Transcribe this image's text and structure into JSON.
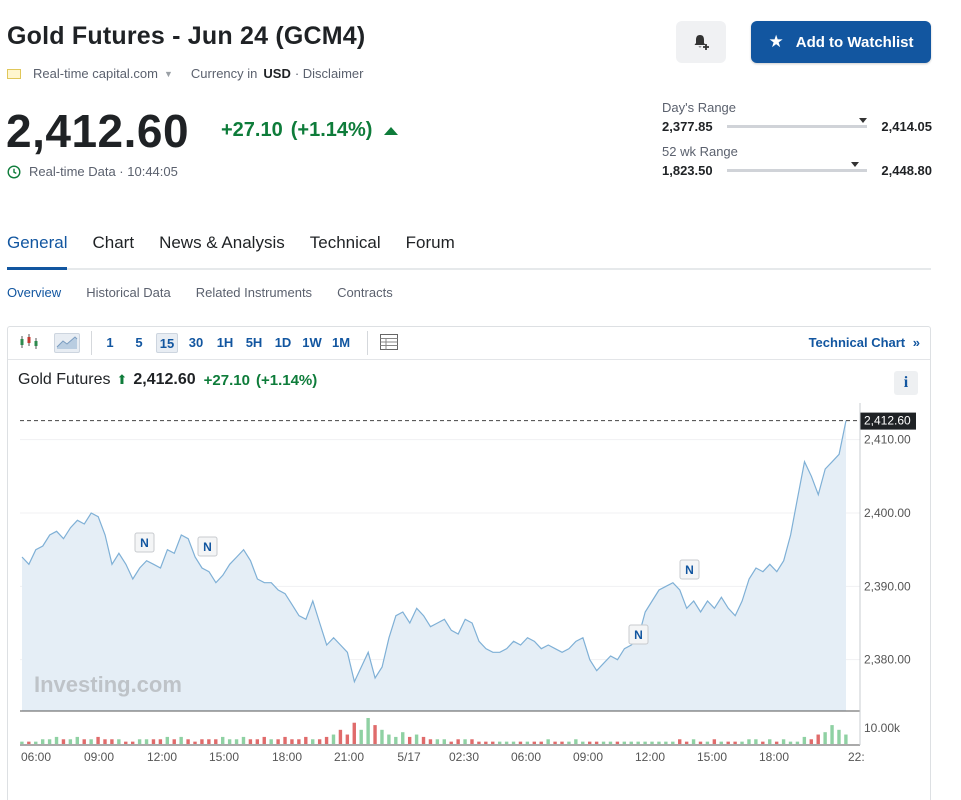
{
  "header": {
    "title": "Gold Futures - Jun 24 (GCM4)",
    "source": "Real-time capital.com",
    "currency_label": "Currency in",
    "currency": "USD",
    "disclaimer": "· Disclaimer",
    "watchlist_label": "Add to Watchlist"
  },
  "quote": {
    "price": "2,412.60",
    "change": "+27.10",
    "change_pct": "(+1.14%)",
    "realtime_label": "Real-time Data · 10:44:05"
  },
  "ranges": {
    "day_label": "Day's Range",
    "day_low": "2,377.85",
    "day_high": "2,414.05",
    "wk_label": "52 wk Range",
    "wk_low": "1,823.50",
    "wk_high": "2,448.80"
  },
  "tabs": [
    {
      "label": "General",
      "active": true
    },
    {
      "label": "Chart"
    },
    {
      "label": "News & Analysis"
    },
    {
      "label": "Technical"
    },
    {
      "label": "Forum"
    }
  ],
  "subtabs": [
    {
      "label": "Overview",
      "active": true
    },
    {
      "label": "Historical Data"
    },
    {
      "label": "Related Instruments"
    },
    {
      "label": "Contracts"
    }
  ],
  "toolbar": {
    "intervals": [
      "1",
      "5",
      "15",
      "30",
      "1H",
      "5H",
      "1D",
      "1W",
      "1M"
    ],
    "selected": "15",
    "technical_chart": "Technical Chart"
  },
  "chart_head": {
    "name": "Gold Futures",
    "price": "2,412.60",
    "change": "+27.10",
    "change_pct": "(+1.14%)"
  },
  "colors": {
    "accent": "#1256a0",
    "up": "#0e7c3a",
    "line": "#7fb0d6",
    "area": "#e5eef6"
  },
  "chart_data": {
    "type": "area",
    "title": "",
    "watermark": "Investing.com",
    "y_ticks": [
      "2,380.00",
      "2,390.00",
      "2,400.00",
      "2,410.00"
    ],
    "ylim": [
      2373,
      2415
    ],
    "last_price_label": "2,412.60",
    "volume_tick": "10.00k",
    "x_ticks": [
      "06:00",
      "09:00",
      "12:00",
      "15:00",
      "18:00",
      "21:00",
      "5/17",
      "02:30",
      "06:00",
      "09:00",
      "12:00",
      "15:00",
      "18:00",
      "22:"
    ],
    "values": [
      2394.0,
      2393.0,
      2395.0,
      2395.5,
      2397.0,
      2397.5,
      2396.5,
      2398.0,
      2399.0,
      2398.5,
      2400.0,
      2399.5,
      2397.0,
      2393.0,
      2394.5,
      2393.0,
      2391.0,
      2392.5,
      2393.5,
      2393.0,
      2392.5,
      2395.0,
      2394.5,
      2397.0,
      2396.5,
      2394.0,
      2392.5,
      2392.0,
      2390.5,
      2391.5,
      2393.0,
      2394.0,
      2395.0,
      2393.5,
      2391.0,
      2390.5,
      2390.5,
      2389.5,
      2389.0,
      2387.5,
      2386.0,
      2385.5,
      2388.0,
      2385.0,
      2382.0,
      2383.0,
      2382.0,
      2381.0,
      2377.0,
      2379.0,
      2381.0,
      2377.5,
      2379.0,
      2383.0,
      2386.0,
      2386.5,
      2385.0,
      2387.0,
      2386.0,
      2384.5,
      2385.0,
      2385.5,
      2384.0,
      2383.5,
      2385.5,
      2385.0,
      2382.5,
      2381.5,
      2381.0,
      2381.0,
      2381.5,
      2382.5,
      2382.0,
      2383.0,
      2382.5,
      2381.5,
      2382.0,
      2381.5,
      2381.0,
      2381.5,
      2382.5,
      2383.0,
      2380.0,
      2378.5,
      2379.5,
      2380.5,
      2380.0,
      2381.5,
      2382.0,
      2383.0,
      2386.5,
      2388.0,
      2389.5,
      2390.0,
      2390.5,
      2389.5,
      2387.0,
      2388.0,
      2386.5,
      2388.0,
      2387.0,
      2388.5,
      2387.0,
      2386.0,
      2388.0,
      2391.0,
      2392.5,
      2392.0,
      2393.0,
      2392.0,
      2393.5,
      2397.0,
      2402.0,
      2407.0,
      2405.0,
      2402.5,
      2406.0,
      2407.0,
      2408.0,
      2412.6
    ],
    "volume": [
      1,
      1,
      1,
      2,
      2,
      3,
      2,
      2,
      3,
      2,
      2,
      3,
      2,
      2,
      2,
      1,
      1,
      2,
      2,
      2,
      2,
      3,
      2,
      3,
      2,
      1,
      2,
      2,
      2,
      3,
      2,
      2,
      3,
      2,
      2,
      3,
      2,
      2,
      3,
      2,
      2,
      3,
      2,
      2,
      3,
      4,
      6,
      4,
      9,
      6,
      11,
      8,
      6,
      4,
      3,
      5,
      3,
      4,
      3,
      2,
      2,
      2,
      1,
      2,
      2,
      2,
      1,
      1,
      1,
      1,
      1,
      1,
      1,
      1,
      1,
      1,
      2,
      1,
      1,
      1,
      2,
      1,
      1,
      1,
      1,
      1,
      1,
      1,
      1,
      1,
      1,
      1,
      1,
      1,
      1,
      2,
      1,
      2,
      1,
      1,
      2,
      1,
      1,
      1,
      1,
      2,
      2,
      1,
      2,
      1,
      2,
      1,
      1,
      3,
      2,
      4,
      5,
      8,
      6,
      4
    ],
    "news_markers": [
      "N",
      "N",
      "N",
      "N"
    ]
  }
}
